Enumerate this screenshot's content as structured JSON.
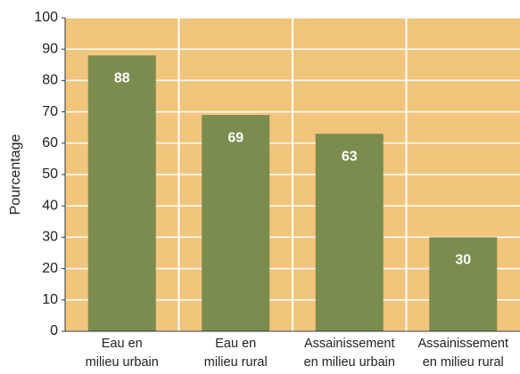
{
  "chart_data": {
    "type": "bar",
    "y_label": "Pourcentage",
    "categories": [
      [
        "Eau en",
        "milieu urbain"
      ],
      [
        "Eau en",
        "milieu rural"
      ],
      [
        "Assainissement",
        "en milieu urbain"
      ],
      [
        "Assainissement",
        "en milieu rural"
      ]
    ],
    "values": [
      88,
      69,
      63,
      30
    ],
    "color": "#7b8c4f",
    "background": "#f2c57c",
    "ylim": [
      0,
      100
    ],
    "yticks": [
      0,
      10,
      20,
      30,
      40,
      50,
      60,
      70,
      80,
      90,
      100
    ],
    "grid": true
  }
}
